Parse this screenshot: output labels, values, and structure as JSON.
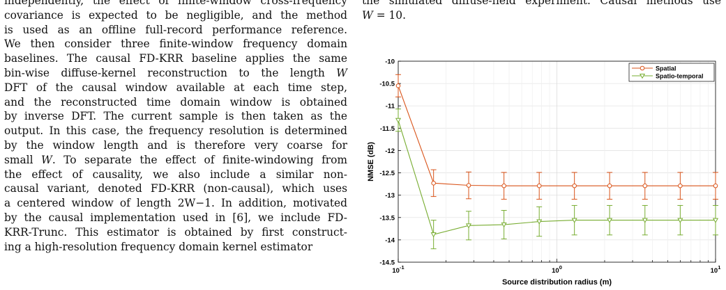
{
  "left_column": {
    "lines": [
      "independently, the effect of finite-window cross-frequency",
      "covariance is expected to be negligible, and the method",
      "is used as an offline full-record performance reference.",
      "We then consider three finite-window frequency domain",
      "baselines. The causal FD-KRR baseline applies the same",
      "bin-wise diffuse-kernel reconstruction to the length W",
      "DFT of the causal window available at each time step,",
      "and the reconstructed time domain window is obtained",
      "by inverse DFT. The current sample is then taken as the",
      "output. In this case, the frequency resolution is determined",
      "by the window length and is therefore very coarse for",
      "small W. To separate the effect of finite-windowing from",
      "the effect of causality, we also include a similar non-",
      "causal variant, denoted FD-KRR (non-causal), which uses",
      "a centered window of length 2W−1. In addition, motivated",
      "by the causal implementation used in [6], we include FD-",
      "KRR-Trunc. This estimator is obtained by first construct-",
      "ing a high-resolution frequency domain kernel estimator"
    ]
  },
  "right_column": {
    "caption_lines": [
      "the simulated diffuse-field experiment. Causal methods use",
      "W = 10."
    ]
  },
  "chart_data": {
    "type": "line",
    "xscale": "log",
    "xlim": [
      0.1,
      10
    ],
    "ylim": [
      -14.5,
      -10
    ],
    "grid": true,
    "legend_position": "top-right",
    "xlabel": "Source distribution radius (m)",
    "ylabel": "NMSE (dB)",
    "x_ticks": [
      0.1,
      1,
      10
    ],
    "x_tick_labels": [
      {
        "base": "10",
        "exp": "-1"
      },
      {
        "base": "10",
        "exp": "0"
      },
      {
        "base": "10",
        "exp": "1"
      }
    ],
    "y_ticks": [
      -10,
      -10.5,
      -11,
      -11.5,
      -12,
      -12.5,
      -13,
      -13.5,
      -14,
      -14.5
    ],
    "y_tick_labels": [
      "-10",
      "-10.5",
      "-11",
      "-11.5",
      "-12",
      "-12.5",
      "-13",
      "-13.5",
      "-14",
      "-14.5"
    ],
    "x": [
      0.1,
      0.167,
      0.278,
      0.464,
      0.774,
      1.29,
      2.15,
      3.59,
      5.99,
      10
    ],
    "series": [
      {
        "name": "Spatial",
        "color": "#d95319",
        "marker": "circle",
        "values": [
          -10.55,
          -12.73,
          -12.78,
          -12.79,
          -12.79,
          -12.79,
          -12.79,
          -12.79,
          -12.79,
          -12.79
        ],
        "error": [
          0.25,
          0.3,
          0.3,
          0.3,
          0.3,
          0.3,
          0.3,
          0.3,
          0.3,
          0.3
        ]
      },
      {
        "name": "Spatio-temporal",
        "color": "#77ac30",
        "marker": "triangle-down",
        "values": [
          -11.32,
          -13.88,
          -13.68,
          -13.66,
          -13.59,
          -13.56,
          -13.56,
          -13.56,
          -13.56,
          -13.56
        ],
        "error": [
          0.25,
          0.32,
          0.32,
          0.32,
          0.33,
          0.33,
          0.33,
          0.33,
          0.33,
          0.33
        ]
      }
    ]
  }
}
